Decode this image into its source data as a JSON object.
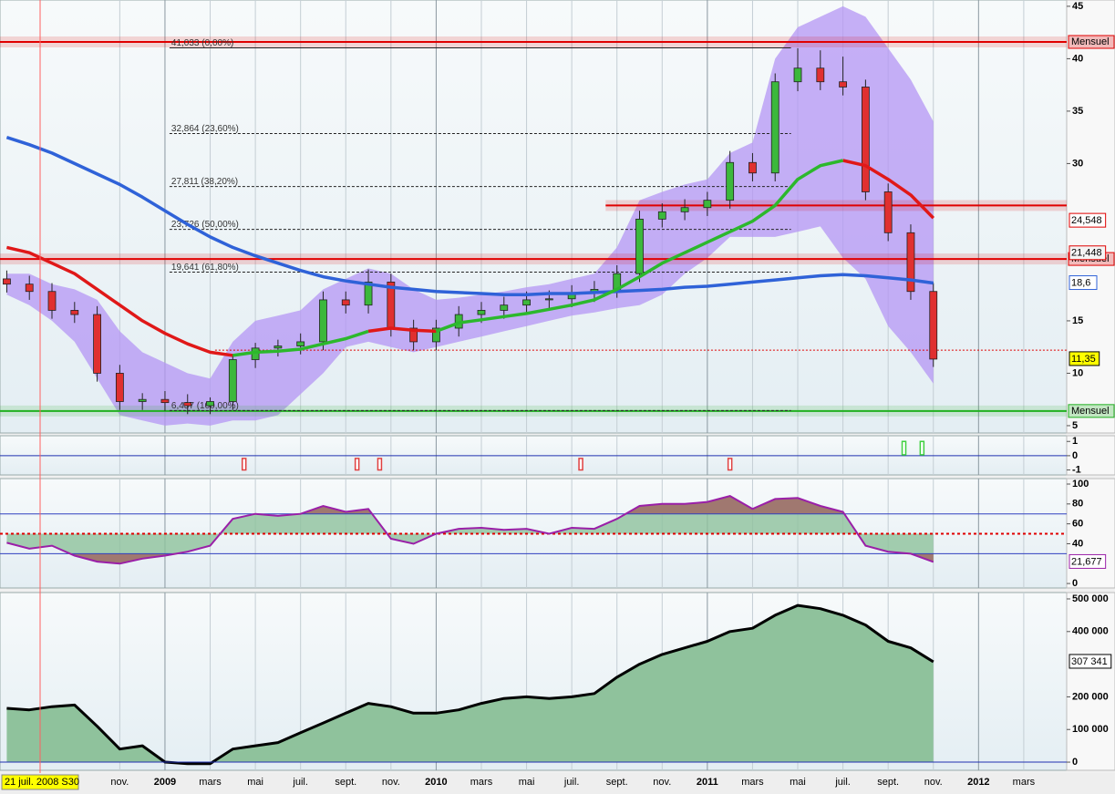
{
  "chart_data": [
    {
      "type": "candlestick",
      "x": [
        -7,
        -6,
        -5,
        -4,
        -3,
        -2,
        -1,
        0,
        1,
        2,
        3,
        4,
        5,
        6,
        7,
        8,
        9,
        10,
        11,
        12,
        13,
        14,
        15,
        16,
        17,
        18,
        19,
        20,
        21,
        22,
        23,
        24,
        25,
        26,
        27,
        28,
        29,
        30,
        31,
        32,
        33,
        34
      ],
      "open": [
        19,
        18.5,
        17.8,
        16,
        15.6,
        10,
        7.3,
        7.5,
        7.2,
        6.9,
        7.3,
        11.3,
        12.4,
        12.6,
        13,
        17,
        16.5,
        18.7,
        14.3,
        13,
        14.3,
        15.6,
        16,
        16.5,
        17,
        17.1,
        17.6,
        18,
        19.5,
        24.7,
        25.4,
        25.8,
        26.5,
        30.1,
        29.1,
        37.8,
        39.1,
        37.8,
        37.3,
        27.3,
        23.4,
        17.8
      ],
      "high": [
        19.8,
        19.3,
        18.6,
        16.8,
        16.4,
        10.8,
        8.1,
        8.3,
        8,
        7.7,
        11.8,
        12.9,
        13.2,
        13.8,
        17.8,
        17.8,
        19.9,
        19.5,
        15.1,
        15.1,
        16.4,
        16.8,
        17.3,
        17.8,
        17.9,
        18.4,
        18.8,
        20.3,
        25.5,
        26.2,
        26.6,
        27.3,
        31.2,
        31,
        38.6,
        41,
        40.8,
        40.2,
        38,
        28.1,
        24.2,
        18.6
      ],
      "low": [
        17.7,
        17,
        15.2,
        14.8,
        9.2,
        6.5,
        6.5,
        6.4,
        6.1,
        6.1,
        6.5,
        10.5,
        11.6,
        11.8,
        12.2,
        15.7,
        15.7,
        13.5,
        12.2,
        12.2,
        13.5,
        14.8,
        15.2,
        15.7,
        16.2,
        16.3,
        16.8,
        17.2,
        18.7,
        23.9,
        24.6,
        25,
        25.7,
        28.3,
        28.3,
        36.9,
        37,
        36.5,
        26.5,
        22.6,
        17,
        10.6
      ],
      "close": [
        18.5,
        17.8,
        16,
        15.6,
        10,
        7.3,
        7.5,
        7.2,
        6.9,
        7.3,
        11.3,
        12.4,
        12.6,
        13,
        17,
        16.5,
        18.7,
        14.3,
        13,
        14.3,
        15.6,
        16,
        16.5,
        17,
        17.1,
        17.6,
        18,
        19.5,
        24.7,
        25.4,
        25.8,
        26.5,
        30.1,
        29.1,
        37.8,
        39.1,
        37.8,
        37.3,
        27.3,
        23.4,
        17.8,
        11.35
      ],
      "up_color": "#3cb83c",
      "down_color": "#e03030",
      "xlim": [
        -7.3,
        39.9
      ],
      "ylim": [
        4.3,
        45.6
      ],
      "yticks": [
        5,
        10,
        15,
        30,
        35,
        40,
        45
      ],
      "bands": {
        "color": "#b496f4",
        "upper": [
          19.5,
          19.5,
          18.5,
          18,
          17,
          14,
          12,
          11,
          10,
          9.5,
          13,
          15,
          15.5,
          16,
          18,
          19,
          20,
          19.5,
          18,
          17,
          17.2,
          17.5,
          17.8,
          18.2,
          18.5,
          19,
          19.5,
          22,
          26.5,
          27.3,
          28,
          28.5,
          31,
          32,
          40,
          43,
          44,
          45,
          44,
          41,
          38,
          34
        ],
        "lower": [
          17.5,
          16.5,
          15,
          13,
          9.5,
          6,
          5.5,
          5,
          5.2,
          5,
          5.5,
          5.5,
          6,
          8,
          10,
          12.5,
          13,
          12.5,
          12,
          12.5,
          13,
          13.5,
          14,
          14.5,
          15,
          15.5,
          15.8,
          16.2,
          16.5,
          17.5,
          19.5,
          21,
          23,
          23,
          23,
          23.5,
          24,
          21,
          19,
          14.5,
          12,
          9
        ]
      },
      "lines": [
        {
          "color": "#2f62d8",
          "values": [
            32.5,
            31.8,
            31,
            30,
            29,
            28,
            26.8,
            25.5,
            24.2,
            23,
            22,
            21.2,
            20.5,
            19.8,
            19.2,
            18.8,
            18.5,
            18.2,
            18,
            17.8,
            17.7,
            17.6,
            17.5,
            17.5,
            17.6,
            17.6,
            17.7,
            17.8,
            17.9,
            18,
            18.2,
            18.3,
            18.5,
            18.7,
            18.9,
            19.1,
            19.3,
            19.4,
            19.3,
            19.1,
            18.9,
            18.6
          ]
        },
        {
          "color": "#e01818",
          "values": [
            22,
            21.5,
            20.5,
            19.5,
            18,
            16.5,
            15,
            13.8,
            12.8,
            12,
            11.7,
            null,
            null,
            null,
            null,
            null,
            14,
            14.3,
            14.1,
            14,
            null,
            null,
            null,
            null,
            null,
            null,
            null,
            null,
            null,
            null,
            null,
            null,
            null,
            null,
            null,
            null,
            null,
            30.3,
            29.8,
            28.5,
            27,
            24.8
          ]
        },
        {
          "color": "#2cb82c",
          "values": [
            null,
            null,
            null,
            null,
            null,
            null,
            null,
            null,
            null,
            null,
            11.7,
            12,
            12.1,
            12.3,
            12.8,
            13.3,
            14,
            null,
            null,
            14,
            14.8,
            15.1,
            15.4,
            15.7,
            16.1,
            16.5,
            17,
            18,
            19.2,
            20.5,
            21.5,
            22.5,
            23.5,
            24.5,
            26,
            28.5,
            29.8,
            30.3,
            null,
            null,
            null,
            null
          ]
        }
      ],
      "levels": [
        {
          "value": 41.6,
          "color": "#e00000",
          "label": "Mensuel"
        },
        {
          "value": 26,
          "color": "#e00000",
          "from": 19.5
        },
        {
          "value": 20.9,
          "color": "#e00000",
          "label": "Mensuel"
        },
        {
          "value": 6.4,
          "color": "#20b020",
          "label": "Mensuel"
        }
      ],
      "dotted_level": {
        "value": 12.2,
        "color": "#e00000"
      },
      "fib_range": [
        0.2,
        27.7
      ],
      "fibonacci": [
        {
          "value": 41.033,
          "label": "41,033 (0,00%)"
        },
        {
          "value": 32.864,
          "label": "32,864 (23,60%)"
        },
        {
          "value": 27.811,
          "label": "27,811 (38,20%)"
        },
        {
          "value": 23.726,
          "label": "23,726 (50,00%)"
        },
        {
          "value": 19.641,
          "label": "19,641 (61,80%)"
        },
        {
          "value": 6.437,
          "label": "6,437 (100,00%)"
        }
      ],
      "price_labels": [
        {
          "value": 24.548,
          "label": "24,548",
          "color": "#e00000",
          "background": "#ffffff"
        },
        {
          "value": 21.448,
          "label": "21,448",
          "color": "#e00000",
          "background": "#f4f4f4"
        },
        {
          "value": 18.6,
          "label": "18,6",
          "color": "#2f62d8",
          "background": "#ffffff"
        },
        {
          "value": 11.35,
          "label": "11,35",
          "color": "#000000",
          "background": "#ffff00"
        }
      ]
    },
    {
      "type": "bar",
      "x": [
        3.5,
        8.5,
        9.5,
        18.4,
        25,
        32.7,
        33.5
      ],
      "values": [
        -1,
        -1,
        -1,
        -1,
        -1,
        1,
        1
      ],
      "up_color": "#40d040",
      "down_color": "#e04040",
      "xlim": [
        -7.3,
        39.9
      ],
      "ylim": [
        -1.35,
        1.4
      ],
      "yticks": [
        -1,
        0,
        1
      ],
      "zero_line": true
    },
    {
      "type": "line",
      "x": [
        -7,
        -6,
        -5,
        -4,
        -3,
        -2,
        -1,
        0,
        1,
        2,
        3,
        4,
        5,
        6,
        7,
        8,
        9,
        10,
        11,
        12,
        13,
        14,
        15,
        16,
        17,
        18,
        19,
        20,
        21,
        22,
        23,
        24,
        25,
        26,
        27,
        28,
        29,
        30,
        31,
        32,
        33,
        34
      ],
      "values": [
        41,
        35,
        38,
        28,
        22,
        20,
        25,
        28,
        32,
        38,
        65,
        70,
        68,
        70,
        78,
        72,
        75,
        45,
        40,
        50,
        55,
        56,
        54,
        55,
        50,
        56,
        55,
        65,
        78,
        80,
        80,
        82,
        88,
        75,
        85,
        86,
        78,
        72,
        38,
        32,
        30,
        21.677
      ],
      "last_label": "21,677",
      "color": "#9a1fa8",
      "levels": [
        {
          "value": 70,
          "color": "#3040c0"
        },
        {
          "value": 30,
          "color": "#3040c0"
        },
        {
          "value": 50,
          "color": "#e00000",
          "dash": true
        }
      ],
      "xlim": [
        -7.3,
        39.9
      ],
      "ylim": [
        -4.5,
        105.5
      ],
      "yticks": [
        0,
        40,
        60,
        80,
        100
      ]
    },
    {
      "type": "area",
      "x": [
        -7,
        -6,
        -5,
        -4,
        -3,
        -2,
        -1,
        0,
        1,
        2,
        3,
        4,
        5,
        6,
        7,
        8,
        9,
        10,
        11,
        12,
        13,
        14,
        15,
        16,
        17,
        18,
        19,
        20,
        21,
        22,
        23,
        24,
        25,
        26,
        27,
        28,
        29,
        30,
        31,
        32,
        33,
        34
      ],
      "values": [
        165000,
        160000,
        170000,
        175000,
        110000,
        40000,
        50000,
        0,
        -5000,
        -5000,
        40000,
        50000,
        60000,
        90000,
        120000,
        150000,
        180000,
        170000,
        150000,
        150000,
        160000,
        180000,
        195000,
        200000,
        195000,
        200000,
        210000,
        260000,
        300000,
        330000,
        350000,
        370000,
        400000,
        410000,
        450000,
        480000,
        470000,
        450000,
        420000,
        370000,
        350000,
        307341
      ],
      "last_label": "307 341",
      "color": "#8fc29c",
      "zero_line": true,
      "xlim": [
        -7.3,
        39.9
      ],
      "ylim": [
        -25000,
        519500
      ],
      "yticks": [
        0,
        {
          "value": 100000,
          "label": "100 000"
        },
        {
          "value": 200000,
          "label": "200 000"
        },
        {
          "value": 400000,
          "label": "400 000"
        },
        {
          "value": 500000,
          "label": "500 000"
        }
      ],
      "xticks": [
        {
          "value": -2,
          "label": "nov."
        },
        {
          "value": 0,
          "label": "2009"
        },
        {
          "value": 2,
          "label": "mars"
        },
        {
          "value": 4,
          "label": "mai"
        },
        {
          "value": 6,
          "label": "juil."
        },
        {
          "value": 8,
          "label": "sept."
        },
        {
          "value": 10,
          "label": "nov."
        },
        {
          "value": 12,
          "label": "2010"
        },
        {
          "value": 14,
          "label": "mars"
        },
        {
          "value": 16,
          "label": "mai"
        },
        {
          "value": 18,
          "label": "juil."
        },
        {
          "value": 20,
          "label": "sept."
        },
        {
          "value": 22,
          "label": "nov."
        },
        {
          "value": 24,
          "label": "2011"
        },
        {
          "value": 26,
          "label": "mars"
        },
        {
          "value": 28,
          "label": "mai"
        },
        {
          "value": 30,
          "label": "juil."
        },
        {
          "value": 32,
          "label": "sept."
        },
        {
          "value": 34,
          "label": "nov."
        },
        {
          "value": 36,
          "label": "2012"
        },
        {
          "value": 38,
          "label": "mars"
        }
      ],
      "cursor_label": "21 juil. 2008 S30"
    }
  ]
}
